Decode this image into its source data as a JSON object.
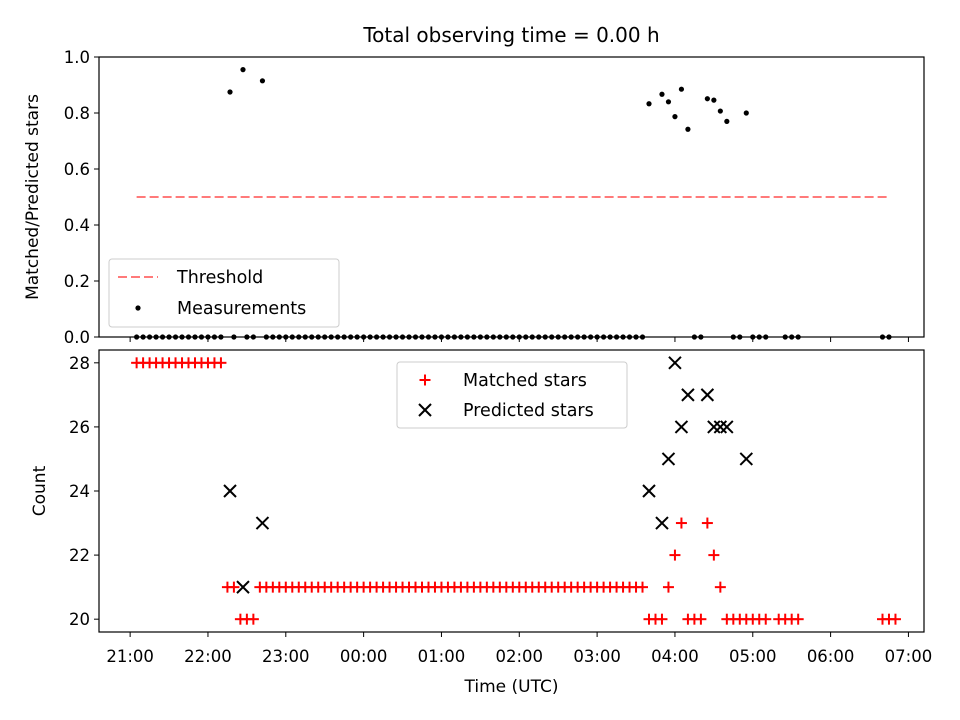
{
  "title": "Total observing time = 0.00 h",
  "colors": {
    "threshold": "#ff7a7a",
    "measurement": "#000000",
    "matched": "#ff0000",
    "predicted": "#000000"
  },
  "chart_data": [
    {
      "type": "scatter",
      "ylabel": "Matched/Predicted stars",
      "xlabel": "",
      "xlim": [
        "20:36",
        "07:12"
      ],
      "ylim": [
        0.0,
        1.0
      ],
      "yticks": [
        "0.0",
        "0.2",
        "0.4",
        "0.6",
        "0.8",
        "1.0"
      ],
      "legend": {
        "position": "lower-left"
      },
      "threshold": {
        "name": "Threshold",
        "value": 0.5,
        "x_start": "21:05",
        "x_end": "06:45"
      },
      "series": [
        {
          "name": "Measurements",
          "points": [
            [
              "22:17",
              0.875
            ],
            [
              "22:27",
              0.955
            ],
            [
              "22:42",
              0.915
            ],
            [
              "03:40",
              0.833
            ],
            [
              "03:50",
              0.867
            ],
            [
              "03:55",
              0.84
            ],
            [
              "04:00",
              0.787
            ],
            [
              "04:05",
              0.885
            ],
            [
              "04:10",
              0.742
            ],
            [
              "04:25",
              0.851
            ],
            [
              "04:30",
              0.846
            ],
            [
              "04:35",
              0.807
            ],
            [
              "04:40",
              0.77
            ],
            [
              "04:55",
              0.8
            ]
          ],
          "zeros": [
            "21:05",
            "21:10",
            "21:15",
            "21:20",
            "21:25",
            "21:30",
            "21:35",
            "21:40",
            "21:45",
            "21:50",
            "21:55",
            "22:00",
            "22:05",
            "22:10",
            "22:20",
            "22:30",
            "22:35",
            "22:45",
            "22:50",
            "22:55",
            "23:00",
            "23:05",
            "23:10",
            "23:15",
            "23:20",
            "23:25",
            "23:30",
            "23:35",
            "23:40",
            "23:45",
            "23:50",
            "23:55",
            "00:00",
            "00:05",
            "00:10",
            "00:15",
            "00:20",
            "00:25",
            "00:30",
            "00:35",
            "00:40",
            "00:45",
            "00:50",
            "00:55",
            "01:00",
            "01:05",
            "01:10",
            "01:15",
            "01:20",
            "01:25",
            "01:30",
            "01:35",
            "01:40",
            "01:45",
            "01:50",
            "01:55",
            "02:00",
            "02:05",
            "02:10",
            "02:15",
            "02:20",
            "02:25",
            "02:30",
            "02:35",
            "02:40",
            "02:45",
            "02:50",
            "02:55",
            "03:00",
            "03:05",
            "03:10",
            "03:15",
            "03:20",
            "03:25",
            "03:30",
            "03:35",
            "04:15",
            "04:20",
            "04:45",
            "04:50",
            "05:00",
            "05:05",
            "05:10",
            "05:25",
            "05:30",
            "05:35",
            "06:40",
            "06:45"
          ]
        }
      ]
    },
    {
      "type": "scatter",
      "ylabel": "Count",
      "xlabel": "Time (UTC)",
      "xlim": [
        "20:36",
        "07:12"
      ],
      "ylim": [
        19.6,
        28.4
      ],
      "yticks": [
        "20",
        "22",
        "24",
        "26",
        "28"
      ],
      "xticks": [
        "21:00",
        "22:00",
        "23:00",
        "00:00",
        "01:00",
        "02:00",
        "03:00",
        "04:00",
        "05:00",
        "06:00",
        "07:00"
      ],
      "legend": {
        "position": "top-center"
      },
      "series": [
        {
          "name": "Matched stars",
          "marker": "+",
          "points": [
            [
              "21:05",
              28
            ],
            [
              "21:10",
              28
            ],
            [
              "21:15",
              28
            ],
            [
              "21:20",
              28
            ],
            [
              "21:25",
              28
            ],
            [
              "21:30",
              28
            ],
            [
              "21:35",
              28
            ],
            [
              "21:40",
              28
            ],
            [
              "21:45",
              28
            ],
            [
              "21:50",
              28
            ],
            [
              "21:55",
              28
            ],
            [
              "22:00",
              28
            ],
            [
              "22:05",
              28
            ],
            [
              "22:10",
              28
            ],
            [
              "22:15",
              21
            ],
            [
              "22:20",
              21
            ],
            [
              "22:25",
              20
            ],
            [
              "22:30",
              20
            ],
            [
              "22:35",
              20
            ],
            [
              "22:40",
              21
            ],
            [
              "22:45",
              21
            ],
            [
              "22:50",
              21
            ],
            [
              "22:55",
              21
            ],
            [
              "23:00",
              21
            ],
            [
              "23:05",
              21
            ],
            [
              "23:10",
              21
            ],
            [
              "23:15",
              21
            ],
            [
              "23:20",
              21
            ],
            [
              "23:25",
              21
            ],
            [
              "23:30",
              21
            ],
            [
              "23:35",
              21
            ],
            [
              "23:40",
              21
            ],
            [
              "23:45",
              21
            ],
            [
              "23:50",
              21
            ],
            [
              "23:55",
              21
            ],
            [
              "00:00",
              21
            ],
            [
              "00:05",
              21
            ],
            [
              "00:10",
              21
            ],
            [
              "00:15",
              21
            ],
            [
              "00:20",
              21
            ],
            [
              "00:25",
              21
            ],
            [
              "00:30",
              21
            ],
            [
              "00:35",
              21
            ],
            [
              "00:40",
              21
            ],
            [
              "00:45",
              21
            ],
            [
              "00:50",
              21
            ],
            [
              "00:55",
              21
            ],
            [
              "01:00",
              21
            ],
            [
              "01:05",
              21
            ],
            [
              "01:10",
              21
            ],
            [
              "01:15",
              21
            ],
            [
              "01:20",
              21
            ],
            [
              "01:25",
              21
            ],
            [
              "01:30",
              21
            ],
            [
              "01:35",
              21
            ],
            [
              "01:40",
              21
            ],
            [
              "01:45",
              21
            ],
            [
              "01:50",
              21
            ],
            [
              "01:55",
              21
            ],
            [
              "02:00",
              21
            ],
            [
              "02:05",
              21
            ],
            [
              "02:10",
              21
            ],
            [
              "02:15",
              21
            ],
            [
              "02:20",
              21
            ],
            [
              "02:25",
              21
            ],
            [
              "02:30",
              21
            ],
            [
              "02:35",
              21
            ],
            [
              "02:40",
              21
            ],
            [
              "02:45",
              21
            ],
            [
              "02:50",
              21
            ],
            [
              "02:55",
              21
            ],
            [
              "03:00",
              21
            ],
            [
              "03:05",
              21
            ],
            [
              "03:10",
              21
            ],
            [
              "03:15",
              21
            ],
            [
              "03:20",
              21
            ],
            [
              "03:25",
              21
            ],
            [
              "03:30",
              21
            ],
            [
              "03:35",
              21
            ],
            [
              "03:40",
              20
            ],
            [
              "03:45",
              20
            ],
            [
              "03:50",
              20
            ],
            [
              "03:55",
              21
            ],
            [
              "04:00",
              22
            ],
            [
              "04:05",
              23
            ],
            [
              "04:10",
              20
            ],
            [
              "04:15",
              20
            ],
            [
              "04:20",
              20
            ],
            [
              "04:25",
              23
            ],
            [
              "04:30",
              22
            ],
            [
              "04:35",
              21
            ],
            [
              "04:40",
              20
            ],
            [
              "04:45",
              20
            ],
            [
              "04:50",
              20
            ],
            [
              "04:55",
              20
            ],
            [
              "05:00",
              20
            ],
            [
              "05:05",
              20
            ],
            [
              "05:10",
              20
            ],
            [
              "05:20",
              20
            ],
            [
              "05:25",
              20
            ],
            [
              "05:30",
              20
            ],
            [
              "05:35",
              20
            ],
            [
              "06:40",
              20
            ],
            [
              "06:45",
              20
            ],
            [
              "06:50",
              20
            ]
          ]
        },
        {
          "name": "Predicted stars",
          "marker": "x",
          "points": [
            [
              "22:17",
              24
            ],
            [
              "22:27",
              21
            ],
            [
              "22:42",
              23
            ],
            [
              "03:40",
              24
            ],
            [
              "03:50",
              23
            ],
            [
              "03:55",
              25
            ],
            [
              "04:00",
              28
            ],
            [
              "04:05",
              26
            ],
            [
              "04:10",
              27
            ],
            [
              "04:25",
              27
            ],
            [
              "04:30",
              26
            ],
            [
              "04:35",
              26
            ],
            [
              "04:40",
              26
            ],
            [
              "04:55",
              25
            ]
          ]
        }
      ]
    }
  ]
}
